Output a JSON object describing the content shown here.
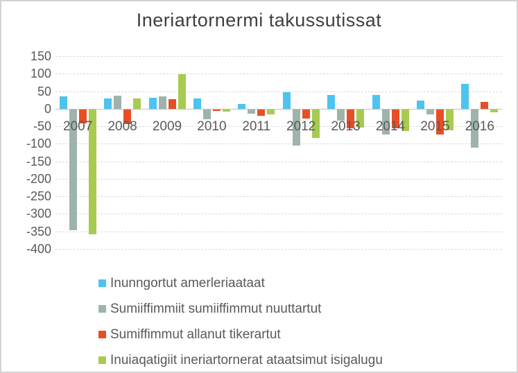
{
  "chart": {
    "title": "Ineriartornermi takussutissat"
  },
  "chart_data": {
    "type": "bar",
    "title": "Ineriartornermi takussutissat",
    "categories": [
      "2007",
      "2008",
      "2009",
      "2010",
      "2011",
      "2012",
      "2013",
      "2014",
      "2015",
      "2016"
    ],
    "series": [
      {
        "name": "Inunngortut amerleriaataat",
        "color": "#4dc3f0",
        "values": [
          35,
          30,
          32,
          29,
          13,
          48,
          40,
          40,
          24,
          71
        ]
      },
      {
        "name": "Sumiiffimmiit sumiiffimmut nuuttartut",
        "color": "#9eb4ab",
        "values": [
          -345,
          38,
          35,
          -29,
          -13,
          -103,
          -32,
          -71,
          -15,
          -110
        ]
      },
      {
        "name": "Sumiffimmut allanut tikerartut",
        "color": "#e74e26",
        "values": [
          -40,
          -42,
          27,
          -5,
          -19,
          -26,
          -54,
          -54,
          -72,
          20
        ]
      },
      {
        "name": "Inuiaqatigiit ineriartornerat ataatsimut isigalugu",
        "color": "#a7cb50",
        "values": [
          -357,
          30,
          99,
          -6,
          -14,
          -82,
          -51,
          -62,
          -60,
          -9
        ]
      }
    ],
    "ylim": [
      -400,
      150
    ],
    "yticks": [
      150,
      100,
      50,
      0,
      -50,
      -100,
      -150,
      -200,
      -250,
      -300,
      -350,
      -400
    ],
    "xlabel": "",
    "ylabel": "",
    "grid": true,
    "legend_position": "bottom-left",
    "colors": {
      "title_text": "#404040",
      "axis_text": "#595959",
      "gridline": "#d9d9d9",
      "zero_line": "#bfbfbf",
      "background": "#ffffff",
      "frame_border": "#d2d2d2"
    }
  }
}
